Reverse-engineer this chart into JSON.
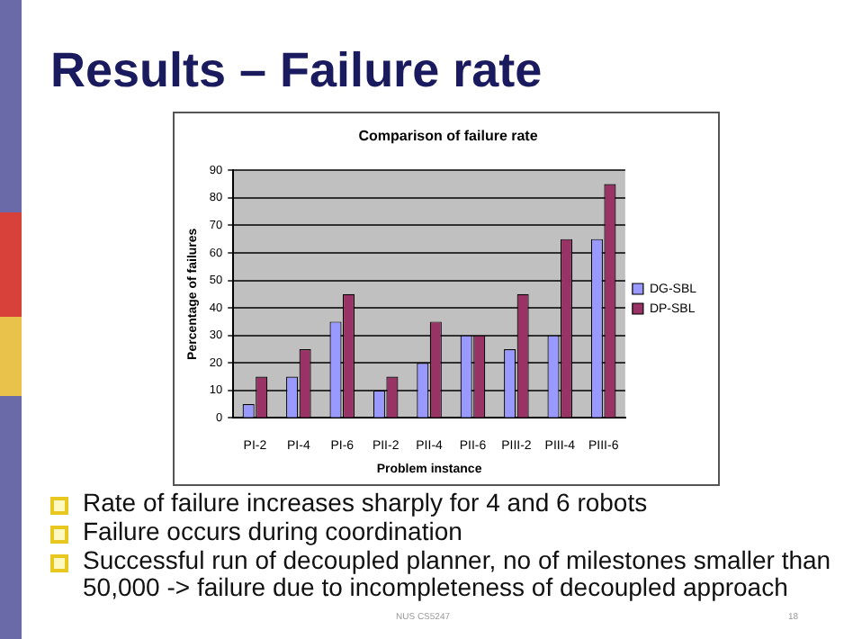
{
  "chart_data": {
    "type": "bar",
    "title": "Results – Failure rate",
    "subtitle": "Comparison of failure rate",
    "xlabel": "Problem instance",
    "ylabel": "Percentage of failures",
    "categories": [
      "PI-2",
      "PI-4",
      "PI-6",
      "PII-2",
      "PII-4",
      "PII-6",
      "PIII-2",
      "PIII-4",
      "PIII-6"
    ],
    "series": [
      {
        "name": "DG-SBL",
        "color": "#9999ff",
        "values": [
          5,
          15,
          35,
          10,
          20,
          30,
          25,
          30,
          65
        ]
      },
      {
        "name": "DP-SBL",
        "color": "#993366",
        "values": [
          15,
          25,
          45,
          15,
          35,
          30,
          45,
          65,
          85
        ]
      }
    ],
    "ylim": [
      0,
      90
    ],
    "yticks": [
      0,
      10,
      20,
      30,
      40,
      50,
      60,
      70,
      80,
      90
    ],
    "grid": "y",
    "legend": "right",
    "annotations": [
      "Rate of failure increases sharply for 4 and 6 robots",
      "Failure occurs during coordination",
      "Successful run of decoupled planner, no of milestones smaller than 50,000 -> failure due to incompleteness of decoupled approach",
      "NUS CS5247",
      "18"
    ]
  }
}
